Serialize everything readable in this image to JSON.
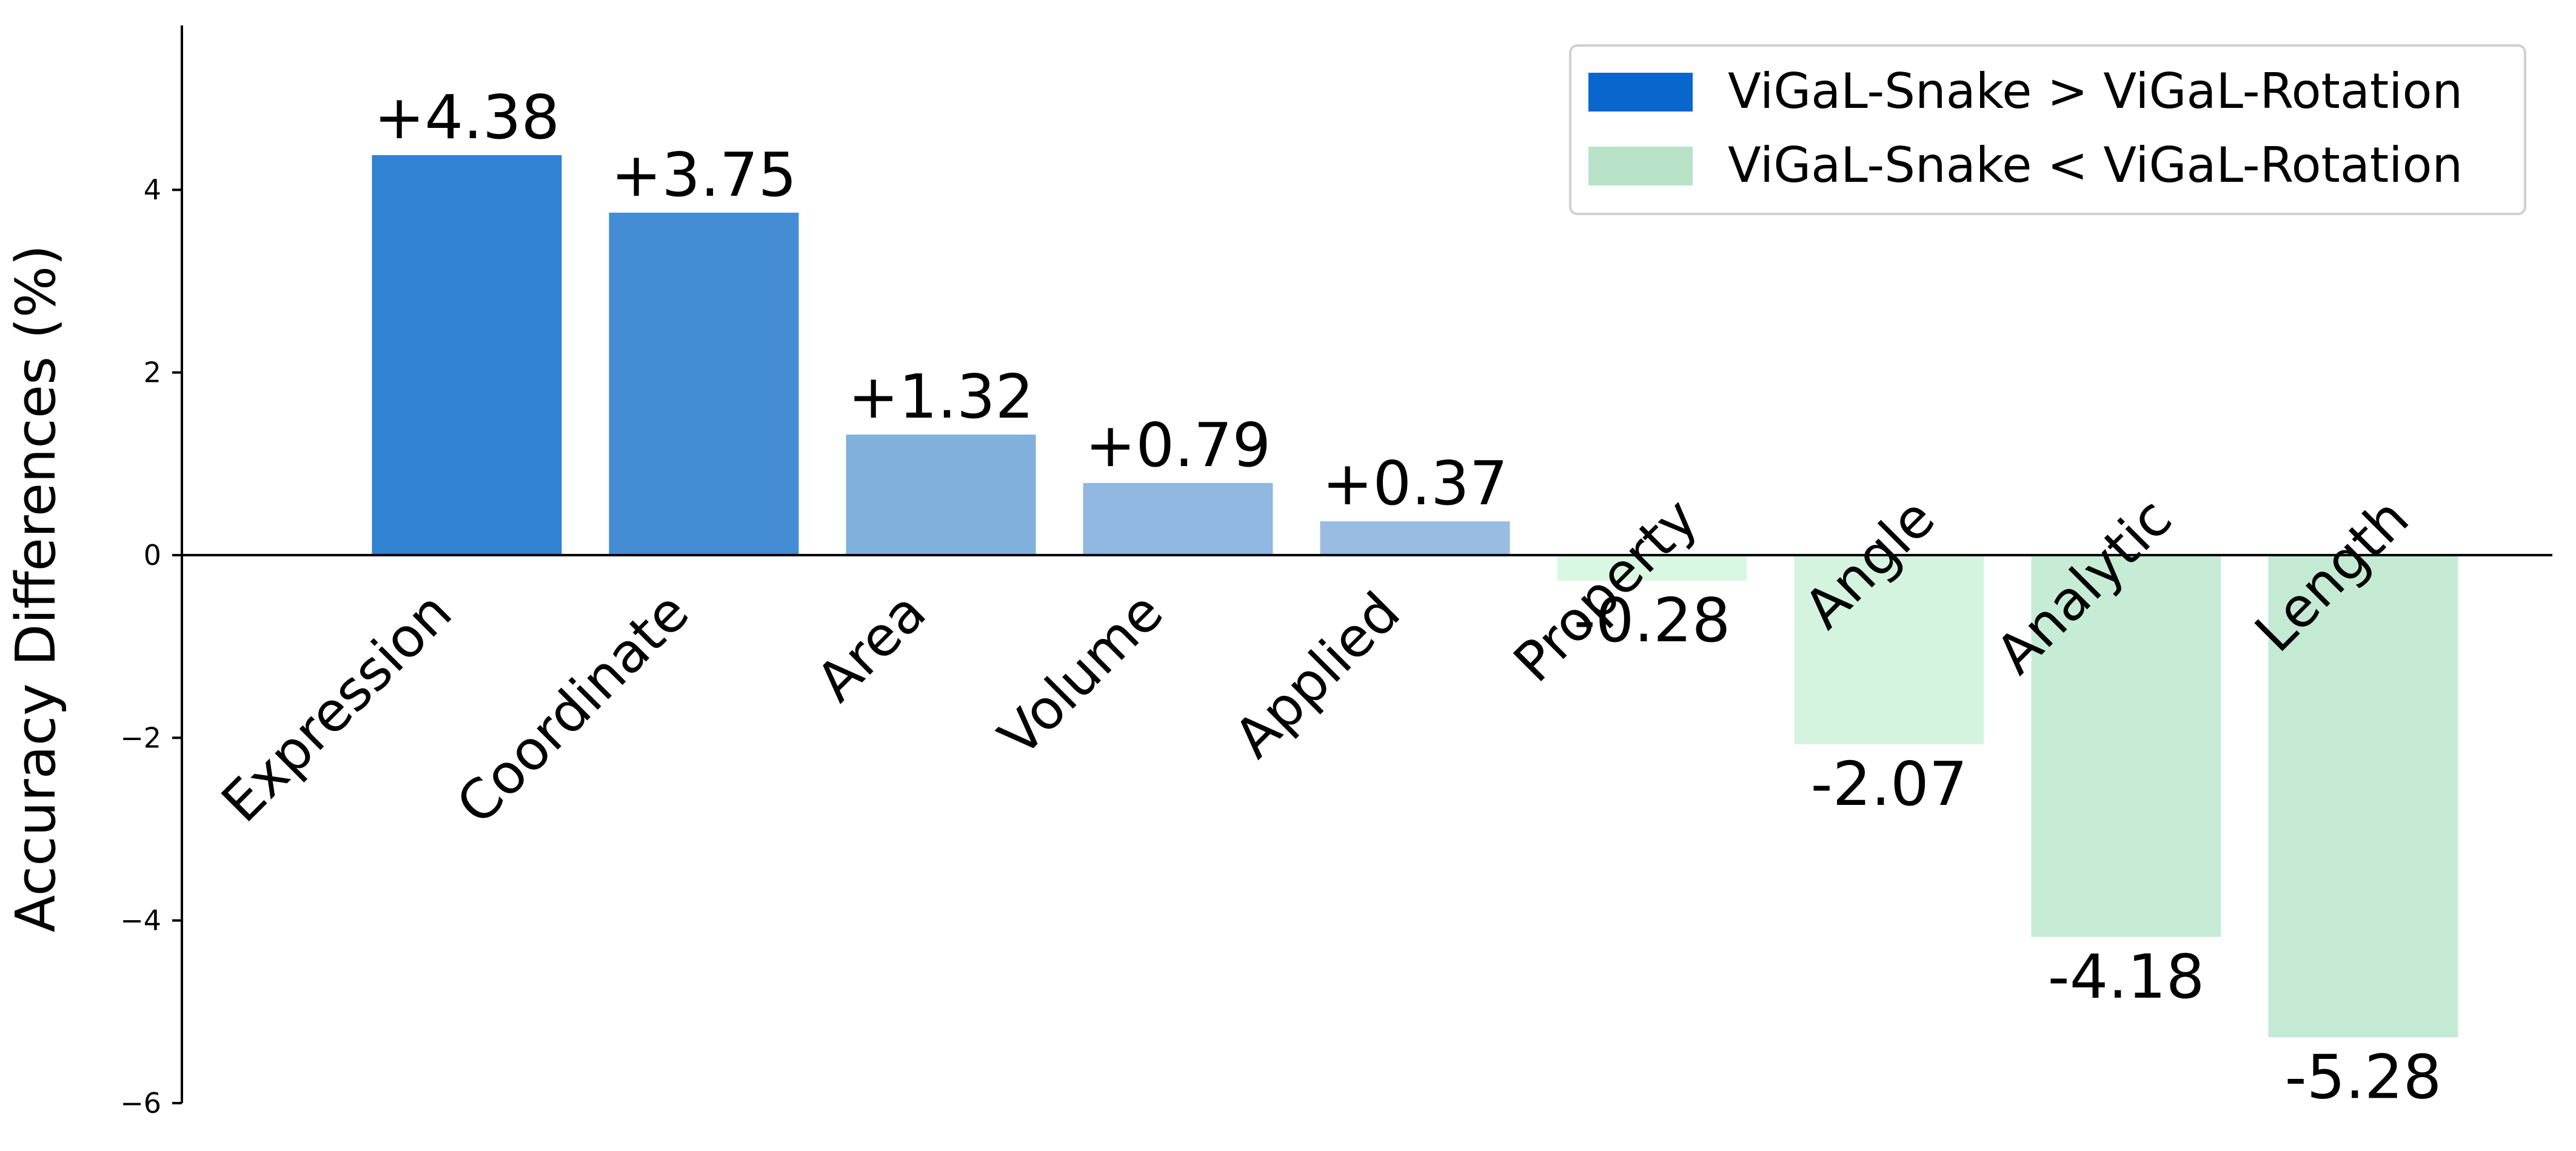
{
  "chart_data": {
    "type": "bar",
    "title": "",
    "xlabel": "",
    "ylabel": "Accuracy Differences (%)",
    "ylim": [
      -6,
      5.8
    ],
    "yticks": [
      -6,
      -4,
      -2,
      0,
      2,
      4
    ],
    "ytick_labels": [
      "−6",
      "−4",
      "−2",
      "0",
      "2",
      "4"
    ],
    "categories": [
      "Expression",
      "Coordinate",
      "Area",
      "Volume",
      "Applied",
      "Property",
      "Angle",
      "Analytic",
      "Length"
    ],
    "values": [
      4.38,
      3.75,
      1.32,
      0.79,
      0.37,
      -0.28,
      -2.07,
      -4.18,
      -5.28
    ],
    "value_labels": [
      "+4.38",
      "+3.75",
      "+1.32",
      "+0.79",
      "+0.37",
      "-0.28",
      "-2.07",
      "-4.18",
      "-5.28"
    ],
    "bar_colors": [
      "#3182d0",
      "#448cd4",
      "#80b0dc",
      "#90b8e0",
      "#98bce2",
      "#d8f8e2",
      "#d4f4e0",
      "#c6ecd6",
      "#c4ead4"
    ],
    "legend": {
      "placement": "top-right",
      "entries": [
        {
          "label": "ViGaL-Snake > ViGaL-Rotation",
          "color": "#0866cc"
        },
        {
          "label": "ViGaL-Snake < ViGaL-Rotation",
          "color": "#b8e2c8"
        }
      ]
    },
    "grid": false
  }
}
